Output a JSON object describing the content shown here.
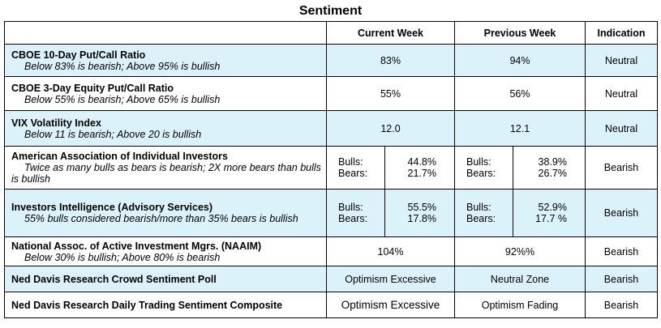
{
  "title": "Sentiment",
  "headers": {
    "current": "Current Week",
    "previous": "Previous Week",
    "indication": "Indication"
  },
  "rows": [
    {
      "name": "CBOE 10-Day Put/Call Ratio",
      "desc": "Below 83% is bearish; Above 95% is bullish",
      "current": "83%",
      "previous": "94%",
      "indication": "Neutral"
    },
    {
      "name": "CBOE 3-Day Equity Put/Call Ratio",
      "desc": "Below 55% is bearish; Above 65% is bullish",
      "current": "55%",
      "previous": "56%",
      "indication": "Neutral"
    },
    {
      "name": "VIX Volatility Index",
      "desc": "Below 11 is bearish; Above 20 is bullish",
      "current": "12.0",
      "previous": "12.1",
      "indication": "Neutral"
    },
    {
      "name": "American Association of Individual Investors",
      "desc": "Twice as many bulls as bears is bearish; 2X more bears than bulls is bullish",
      "bulls_label": "Bulls:",
      "bears_label": "Bears:",
      "current_bulls": "44.8%",
      "current_bears": "21.7%",
      "previous_bulls": "38.9%",
      "previous_bears": "26.7%",
      "indication": "Bearish"
    },
    {
      "name": "Investors Intelligence (Advisory Services)",
      "desc": "55% bulls considered bearish/more than 35% bears is bullish",
      "bulls_label": "Bulls:",
      "bears_label": "Bears:",
      "current_bulls": "55.5%",
      "current_bears": "17.8%",
      "previous_bulls": "52.9%",
      "previous_bears": "17.7 %",
      "indication": "Bearish"
    },
    {
      "name": "National Assoc. of Active Investment Mgrs. (NAAIM)",
      "desc": "Below 30% is bullish; Above 80% is bearish",
      "current": "104%",
      "previous": "92%%",
      "indication": "Bearish"
    },
    {
      "name": "Ned Davis Research Crowd Sentiment Poll",
      "current": "Optimism Excessive",
      "previous": "Neutral Zone",
      "indication": "Bearish"
    },
    {
      "name": "Ned Davis Research Daily Trading Sentiment Composite",
      "current": "Optimism Excessive",
      "previous": "Optimism Fading",
      "indication": "Bearish"
    }
  ],
  "colors": {
    "row_highlight": "#dcf2fa",
    "border": "#000000"
  }
}
